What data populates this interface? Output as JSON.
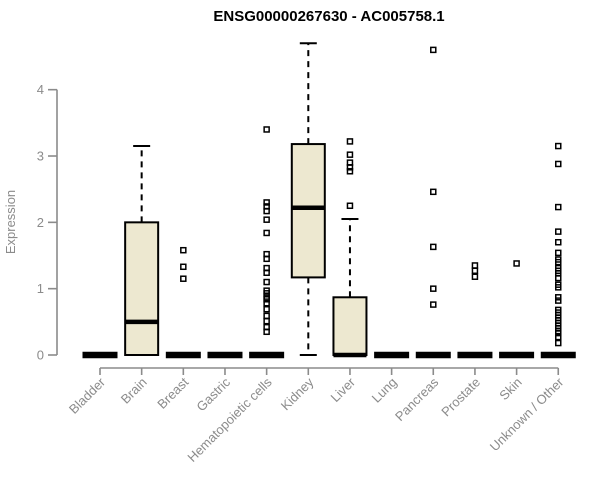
{
  "colors": {
    "box_fill": "#EDE8D0",
    "box_stroke": "#000000",
    "median": "#000000",
    "whisker": "#000000",
    "outlier": "#000000",
    "axis": "#8B8B8B",
    "tick_label": "#8B8B8B",
    "title": "#000000",
    "background": "#FFFFFF"
  },
  "chart_data": {
    "type": "boxplot",
    "title": "ENSG00000267630 - AC005758.1",
    "xlabel": "",
    "ylabel": "Expression",
    "ylim": [
      0,
      4.8
    ],
    "yticks": [
      0,
      1,
      2,
      3,
      4
    ],
    "grid": false,
    "legend": false,
    "categories": [
      "Bladder",
      "Brain",
      "Breast",
      "Gastric",
      "Hematopoietic cells",
      "Kidney",
      "Liver",
      "Lung",
      "Pancreas",
      "Prostate",
      "Skin",
      "Unknown / Other"
    ],
    "series": [
      {
        "name": "Bladder",
        "q1": 0,
        "median": 0,
        "q3": 0,
        "whisker_low": 0,
        "whisker_high": 0,
        "outliers": []
      },
      {
        "name": "Brain",
        "q1": 0,
        "median": 0.5,
        "q3": 2.0,
        "whisker_low": 0,
        "whisker_high": 3.15,
        "outliers": []
      },
      {
        "name": "Breast",
        "q1": 0,
        "median": 0,
        "q3": 0,
        "whisker_low": 0,
        "whisker_high": 0,
        "outliers": [
          1.58,
          1.33,
          1.15
        ]
      },
      {
        "name": "Gastric",
        "q1": 0,
        "median": 0,
        "q3": 0,
        "whisker_low": 0,
        "whisker_high": 0,
        "outliers": []
      },
      {
        "name": "Hematopoietic cells",
        "q1": 0,
        "median": 0,
        "q3": 0,
        "whisker_low": 0,
        "whisker_high": 0,
        "outliers": [
          3.4,
          2.3,
          2.24,
          2.17,
          2.04,
          1.84,
          1.52,
          1.45,
          1.31,
          1.24,
          1.1,
          0.97,
          0.93,
          0.88,
          0.84,
          0.78,
          0.69,
          0.59,
          0.51,
          0.42,
          0.35
        ]
      },
      {
        "name": "Kidney",
        "q1": 1.17,
        "median": 2.22,
        "q3": 3.18,
        "whisker_low": 0,
        "whisker_high": 4.7,
        "outliers": []
      },
      {
        "name": "Liver",
        "q1": 0,
        "median": 0,
        "q3": 0.87,
        "whisker_low": 0,
        "whisker_high": 2.05,
        "outliers": [
          3.22,
          3.02,
          2.9,
          2.83,
          2.77,
          2.25
        ]
      },
      {
        "name": "Lung",
        "q1": 0,
        "median": 0,
        "q3": 0,
        "whisker_low": 0,
        "whisker_high": 0,
        "outliers": []
      },
      {
        "name": "Pancreas",
        "q1": 0,
        "median": 0,
        "q3": 0,
        "whisker_low": 0,
        "whisker_high": 0,
        "outliers": [
          4.6,
          2.46,
          1.63,
          1.0,
          0.76
        ]
      },
      {
        "name": "Prostate",
        "q1": 0,
        "median": 0,
        "q3": 0,
        "whisker_low": 0,
        "whisker_high": 0,
        "outliers": [
          1.35,
          1.27,
          1.18
        ]
      },
      {
        "name": "Skin",
        "q1": 0,
        "median": 0,
        "q3": 0,
        "whisker_low": 0,
        "whisker_high": 0,
        "outliers": [
          1.38
        ]
      },
      {
        "name": "Unknown / Other",
        "q1": 0,
        "median": 0,
        "q3": 0,
        "whisker_low": 0,
        "whisker_high": 0,
        "outliers": [
          3.15,
          2.88,
          2.23,
          1.86,
          1.7,
          1.54,
          1.44,
          1.4,
          1.31,
          1.27,
          1.23,
          1.16,
          1.06,
          1.02,
          0.87,
          0.82,
          0.68,
          0.64,
          0.6,
          0.56,
          0.52,
          0.48,
          0.44,
          0.4,
          0.36,
          0.33,
          0.27,
          0.18
        ]
      }
    ]
  }
}
